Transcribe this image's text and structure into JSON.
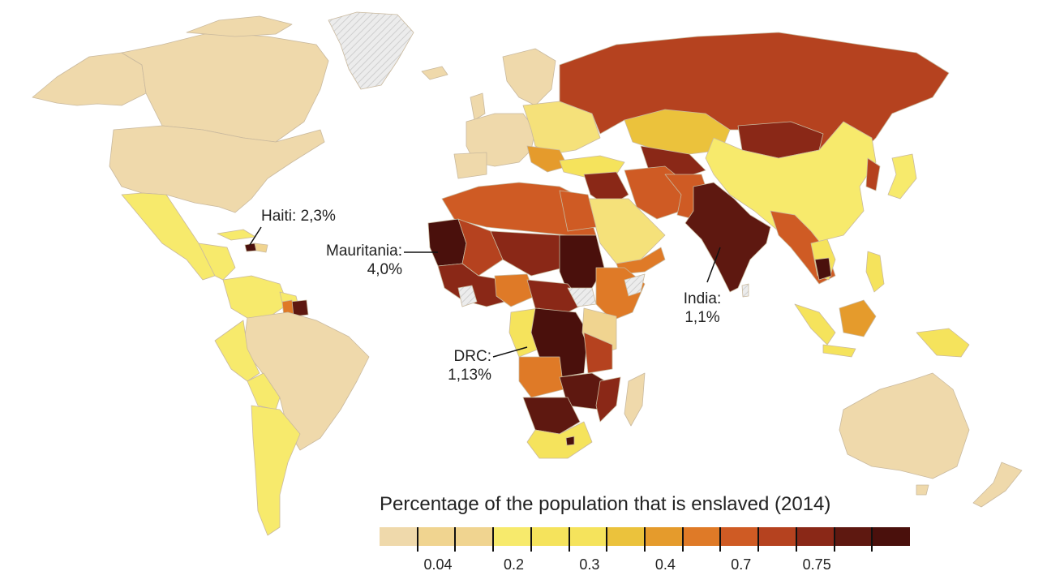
{
  "title": "Percentage of the population that is enslaved (2014)",
  "colors": {
    "ocean": "#ffffff",
    "border": "#c8b8a0",
    "no_data": "#e6e6e6",
    "scale": [
      "#efd9ab",
      "#f0d490",
      "#f5e17a",
      "#f7ea6c",
      "#f5e35c",
      "#ebc23c",
      "#e59b2c",
      "#df7a27",
      "#cf5b24",
      "#b5421f",
      "#8a2817",
      "#5e1810",
      "#4a100c"
    ]
  },
  "legend": {
    "tick_labels": [
      "0.04",
      "0.2",
      "0.3",
      "0.4",
      "0.7",
      "0.75"
    ]
  },
  "callouts": [
    {
      "label": "Haiti: 2,3%"
    },
    {
      "label": "Mauritania:",
      "value": "4,0%"
    },
    {
      "label": "India:",
      "value": "1,1%"
    },
    {
      "label": "DRC:",
      "value": "1,13%"
    }
  ]
}
